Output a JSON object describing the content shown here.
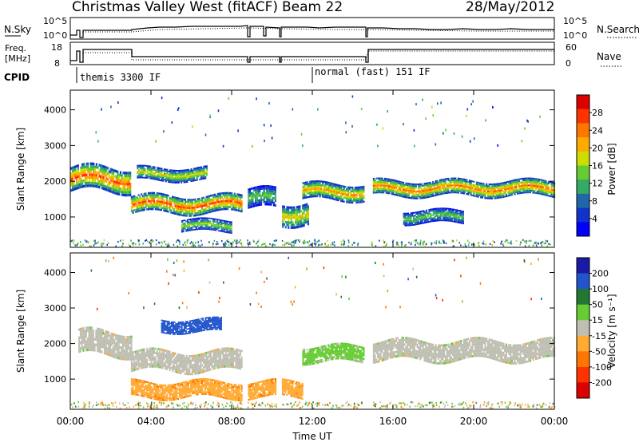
{
  "header": {
    "station": "Christmas Valley West (fitACF)",
    "beam": "Beam 22",
    "date": "28/May/2012"
  },
  "noise_panel": {
    "left_label": "N.Sky",
    "left_ticks": [
      "10^5",
      "10^0"
    ],
    "right_label": "N.Search",
    "right_ticks": [
      "10^5",
      "10^0"
    ]
  },
  "freq_panel": {
    "left_label_1": "Freq.",
    "left_label_2": "[MHz]",
    "left_ticks": [
      "18",
      "8"
    ],
    "right_label": "Nave",
    "right_ticks": [
      "60",
      "0"
    ]
  },
  "cpid": {
    "label": "CPID",
    "modes": [
      "themis 3300 IF",
      "normal (fast) 151 IF"
    ]
  },
  "chart_data": [
    {
      "type": "heatmap",
      "title": "",
      "xlabel": "",
      "ylabel": "Slant Range [km]",
      "xlim": [
        0,
        24
      ],
      "ylim": [
        150,
        4550
      ],
      "y_ticks": [
        1000,
        2000,
        3000,
        4000
      ],
      "colorbar": {
        "label": "Power [dB]",
        "ticks": [
          "28",
          "24",
          "20",
          "16",
          "12",
          "8",
          "4"
        ],
        "colors": [
          "#dd0000",
          "#ff3300",
          "#ff7700",
          "#ffaa00",
          "#ccdd00",
          "#66cc33",
          "#33aa66",
          "#2266aa",
          "#1133cc",
          "#0000ff"
        ]
      },
      "bands": [
        {
          "x0": 0.0,
          "x1": 3.0,
          "center": 2050,
          "width": 220,
          "value": 26
        },
        {
          "x0": 3.0,
          "x1": 8.7,
          "center": 1350,
          "width": 160,
          "value": 26
        },
        {
          "x0": 3.3,
          "x1": 6.8,
          "center": 2200,
          "width": 120,
          "value": 18
        },
        {
          "x0": 5.5,
          "x1": 8.0,
          "center": 750,
          "width": 110,
          "value": 16
        },
        {
          "x0": 8.8,
          "x1": 10.2,
          "center": 1500,
          "width": 180,
          "value": 14
        },
        {
          "x0": 10.5,
          "x1": 11.8,
          "center": 1100,
          "width": 200,
          "value": 20
        },
        {
          "x0": 11.5,
          "x1": 14.6,
          "center": 1700,
          "width": 150,
          "value": 22
        },
        {
          "x0": 15.0,
          "x1": 24.0,
          "center": 1800,
          "width": 140,
          "value": 24
        },
        {
          "x0": 16.5,
          "x1": 19.5,
          "center": 1000,
          "width": 120,
          "value": 14
        }
      ]
    },
    {
      "type": "heatmap",
      "title": "",
      "xlabel": "Time UT",
      "ylabel": "Slant Range [km]",
      "xlim": [
        0,
        24
      ],
      "ylim": [
        150,
        4550
      ],
      "x_ticks": [
        "00:00",
        "04:00",
        "08:00",
        "12:00",
        "16:00",
        "20:00",
        "00:00"
      ],
      "y_ticks": [
        1000,
        2000,
        3000,
        4000
      ],
      "colorbar": {
        "label": "Velocity [m s⁻¹]",
        "ticks": [
          "200",
          "100",
          "50",
          "15",
          "-15",
          "-50",
          "-100",
          "-200"
        ],
        "colors": [
          "#1a1aa6",
          "#2255cc",
          "#227733",
          "#66cc33",
          "#bfbfb2",
          "#ffaa33",
          "#ff7700",
          "#ff3300",
          "#dd0000"
        ]
      },
      "bands": [
        {
          "x0": 0.4,
          "x1": 3.0,
          "center": 2000,
          "width": 220,
          "value": 0
        },
        {
          "x0": 3.0,
          "x1": 8.7,
          "center": 1500,
          "width": 180,
          "value": 0
        },
        {
          "x0": 4.5,
          "x1": 7.5,
          "center": 2500,
          "width": 120,
          "value": 120
        },
        {
          "x0": 3.0,
          "x1": 11.5,
          "center": 700,
          "width": 150,
          "value": -40
        },
        {
          "x0": 11.5,
          "x1": 14.6,
          "center": 1700,
          "width": 150,
          "value": 25
        },
        {
          "x0": 15.0,
          "x1": 24.0,
          "center": 1800,
          "width": 180,
          "value": 0
        }
      ]
    }
  ]
}
